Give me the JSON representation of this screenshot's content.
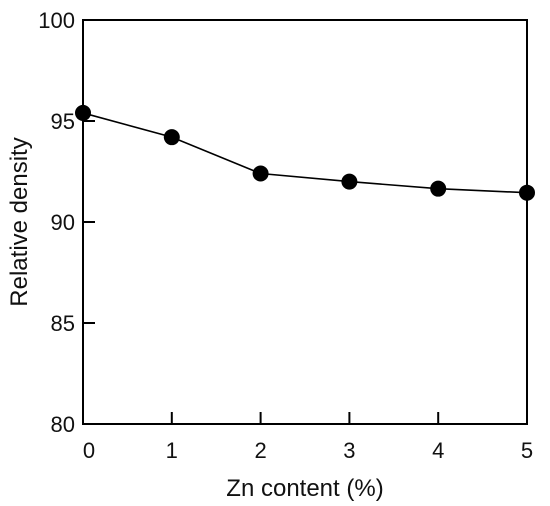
{
  "chart_data": {
    "type": "line",
    "title": "",
    "xlabel": "Zn content (%)",
    "ylabel": "Relative density",
    "xlim": [
      0,
      5
    ],
    "ylim": [
      80,
      100
    ],
    "x_ticks": [
      "0",
      "1",
      "2",
      "3",
      "4",
      "5"
    ],
    "y_ticks": [
      "80",
      "85",
      "90",
      "95",
      "100"
    ],
    "grid": false,
    "legend": "none",
    "series": [
      {
        "x": [
          0,
          1,
          2,
          3,
          4,
          5
        ],
        "y": [
          95.4,
          94.2,
          92.4,
          92.0,
          91.65,
          91.45
        ],
        "color": "#000000"
      }
    ]
  }
}
